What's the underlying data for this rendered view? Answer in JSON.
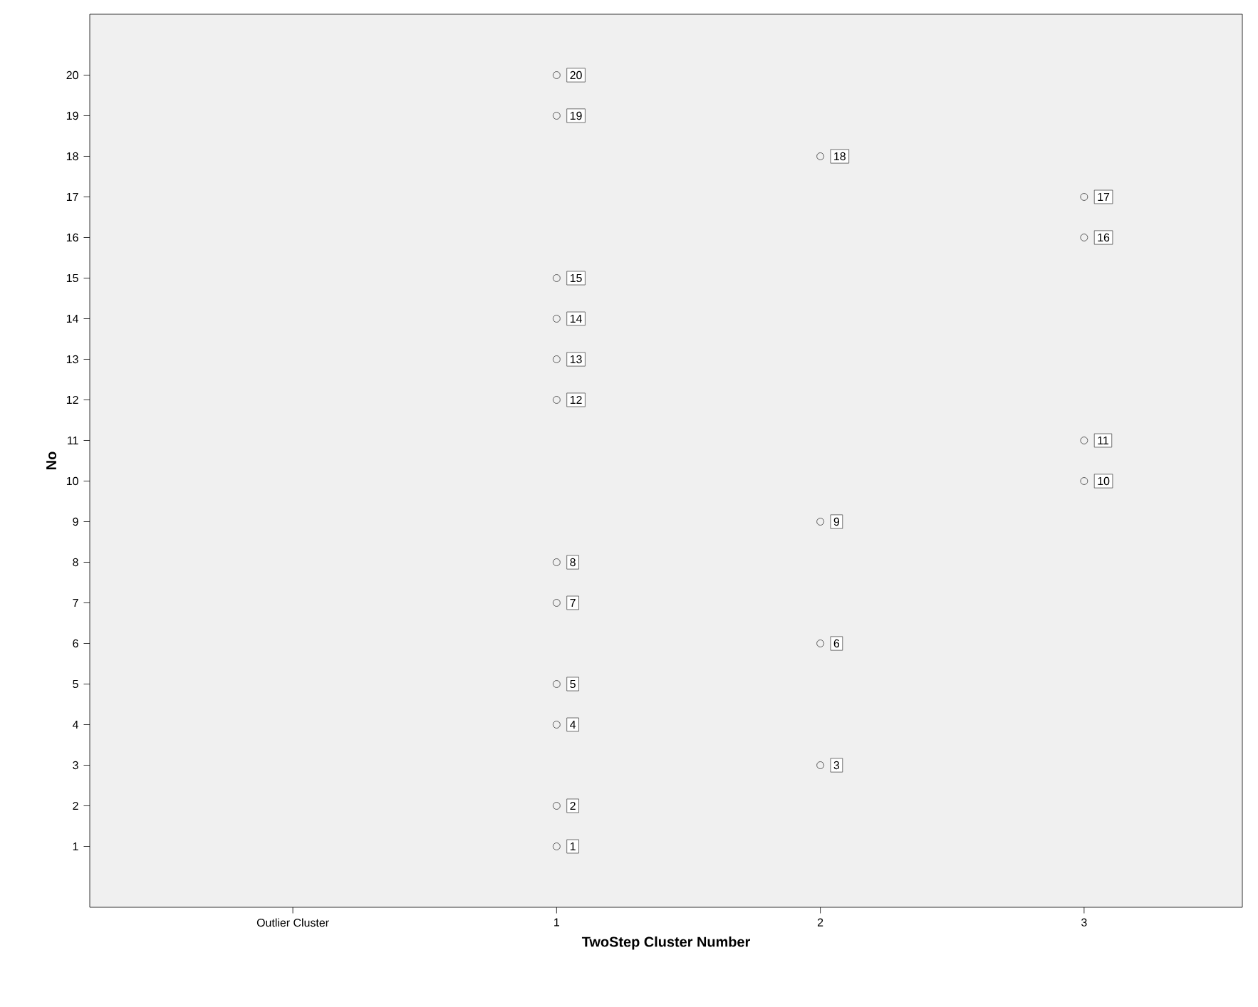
{
  "chart_data": {
    "type": "scatter",
    "xlabel": "TwoStep Cluster Number",
    "ylabel": "No",
    "categories": [
      "Outlier Cluster",
      "1",
      "2",
      "3"
    ],
    "series": [
      {
        "color": "#333333",
        "x": [
          "1",
          "1",
          "2",
          "1",
          "1",
          "2",
          "1",
          "1",
          "2",
          "3",
          "3",
          "1",
          "1",
          "1",
          "1",
          "3",
          "3",
          "2",
          "1",
          "1"
        ],
        "values": [
          1,
          2,
          3,
          4,
          5,
          6,
          7,
          8,
          9,
          10,
          11,
          12,
          13,
          14,
          15,
          16,
          17,
          18,
          19,
          20
        ]
      }
    ],
    "ylim": [
      -0.5,
      21.5
    ],
    "yticks": [
      1,
      2,
      3,
      4,
      5,
      6,
      7,
      8,
      9,
      10,
      11,
      12,
      13,
      14,
      15,
      16,
      17,
      18,
      19,
      20
    ],
    "marker": "circle",
    "data_labels": true
  }
}
